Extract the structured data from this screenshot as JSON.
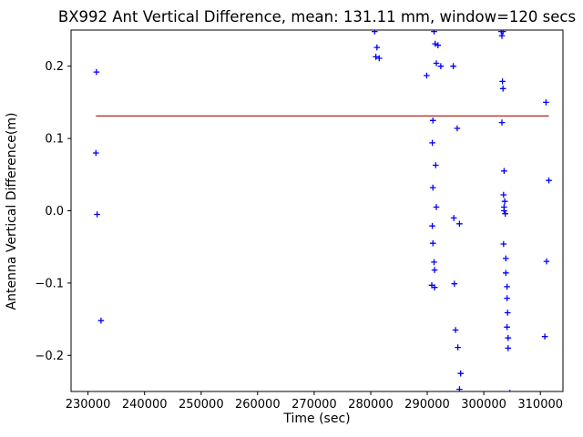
{
  "chart_data": {
    "type": "scatter",
    "title": "BX992 Ant Vertical Difference, mean: 131.11 mm, window=120 secs",
    "xlabel": "Time (sec)",
    "ylabel": "Antenna Vertical Difference(m)",
    "xlim": [
      227000,
      314000
    ],
    "ylim": [
      -0.25,
      0.25
    ],
    "xticks": [
      230000,
      240000,
      250000,
      260000,
      270000,
      280000,
      290000,
      300000,
      310000
    ],
    "xtick_labels": [
      "230000",
      "240000",
      "250000",
      "260000",
      "270000",
      "280000",
      "290000",
      "300000",
      "310000"
    ],
    "yticks": [
      -0.2,
      -0.1,
      0.0,
      0.1,
      0.2
    ],
    "ytick_labels": [
      "−0.2",
      "−0.1",
      "0.0",
      "0.1",
      "0.2"
    ],
    "grid": false,
    "legend": null,
    "marker": "plus",
    "marker_color": "#0000ff",
    "axes_color": "#000000",
    "background_color": "#ffffff",
    "mean_line": {
      "value": 0.13111,
      "color": "#b22222",
      "x_start": 231400,
      "x_end": 311500
    },
    "points": [
      [
        231500,
        0.192
      ],
      [
        231400,
        0.08
      ],
      [
        231600,
        -0.005
      ],
      [
        232300,
        -0.152
      ],
      [
        280700,
        0.248
      ],
      [
        281100,
        0.226
      ],
      [
        280900,
        0.213
      ],
      [
        281500,
        0.211
      ],
      [
        289900,
        0.187
      ],
      [
        291200,
        0.248
      ],
      [
        291400,
        0.231
      ],
      [
        291900,
        0.229
      ],
      [
        291600,
        0.204
      ],
      [
        292400,
        0.2
      ],
      [
        291000,
        0.125
      ],
      [
        290900,
        0.094
      ],
      [
        291500,
        0.063
      ],
      [
        291000,
        0.032
      ],
      [
        291600,
        0.005
      ],
      [
        290900,
        -0.021
      ],
      [
        291000,
        -0.045
      ],
      [
        291200,
        -0.071
      ],
      [
        291300,
        -0.082
      ],
      [
        290800,
        -0.103
      ],
      [
        291300,
        -0.106
      ],
      [
        294600,
        0.2
      ],
      [
        295300,
        0.114
      ],
      [
        294700,
        -0.01
      ],
      [
        295700,
        -0.018
      ],
      [
        294800,
        -0.101
      ],
      [
        295000,
        -0.165
      ],
      [
        295400,
        -0.189
      ],
      [
        295900,
        -0.225
      ],
      [
        295700,
        -0.247
      ],
      [
        303100,
        0.248
      ],
      [
        303400,
        0.248
      ],
      [
        303200,
        0.242
      ],
      [
        303300,
        0.179
      ],
      [
        303400,
        0.169
      ],
      [
        303200,
        0.122
      ],
      [
        303600,
        0.055
      ],
      [
        303500,
        0.022
      ],
      [
        303700,
        0.013
      ],
      [
        303600,
        0.005
      ],
      [
        303600,
        0.0
      ],
      [
        303800,
        -0.004
      ],
      [
        303500,
        -0.046
      ],
      [
        303900,
        -0.066
      ],
      [
        303900,
        -0.086
      ],
      [
        304100,
        -0.105
      ],
      [
        304100,
        -0.121
      ],
      [
        304200,
        -0.141
      ],
      [
        304100,
        -0.161
      ],
      [
        304300,
        -0.176
      ],
      [
        304300,
        -0.19
      ],
      [
        304600,
        -0.252
      ],
      [
        311000,
        0.15
      ],
      [
        311500,
        0.042
      ],
      [
        311100,
        -0.07
      ],
      [
        310800,
        -0.174
      ]
    ]
  }
}
